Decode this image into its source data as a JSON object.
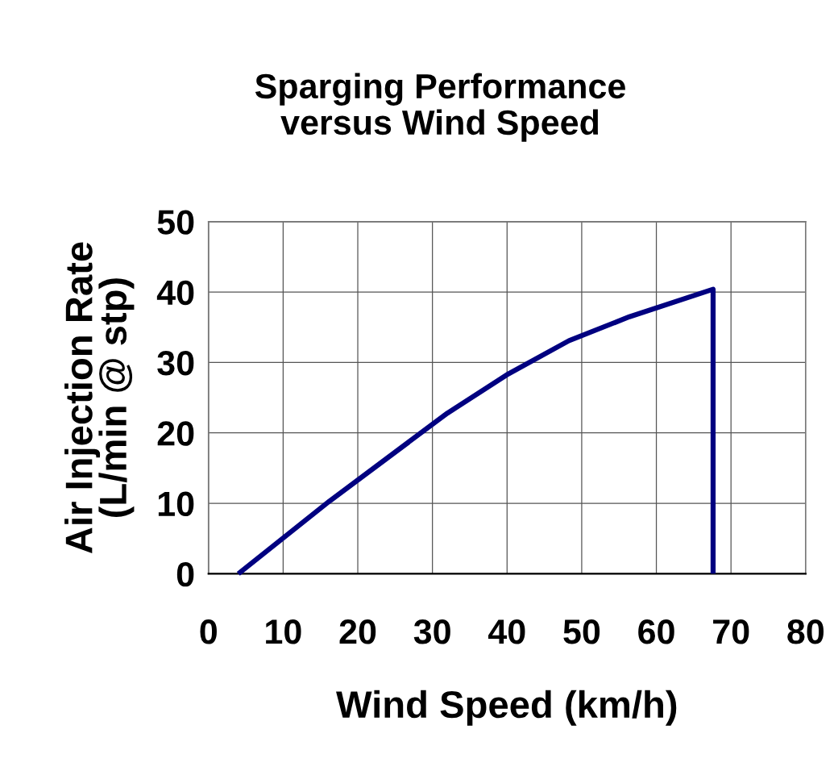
{
  "chart_data": {
    "type": "line",
    "title": "Sparging Performance\nversus Wind Speed",
    "xlabel": "Wind Speed (km/h)",
    "ylabel": "Air Injection Rate\n(L/min @ stp)",
    "series": [
      {
        "color": "#000080",
        "x": [
          4,
          16.2,
          32,
          40.2,
          48.3,
          56.4,
          67.6,
          67.6
        ],
        "values": [
          0,
          10.3,
          22.8,
          28.4,
          33.1,
          36.5,
          40.4,
          0
        ]
      }
    ],
    "xlim": [
      0,
      80
    ],
    "xticks": [
      0,
      10,
      20,
      30,
      40,
      50,
      60,
      70,
      80
    ],
    "ylim": [
      0,
      50
    ],
    "yticks": [
      0,
      10,
      20,
      30,
      40,
      50
    ],
    "grid": true,
    "marker": "none",
    "line_style": "solid"
  }
}
